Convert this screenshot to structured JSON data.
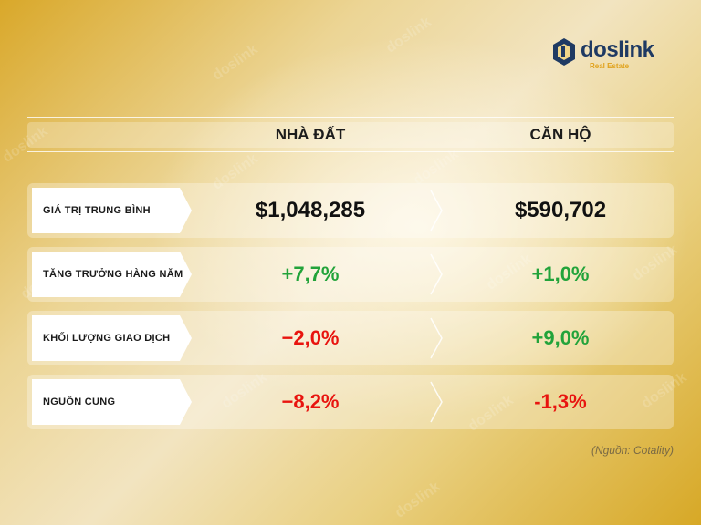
{
  "brand": {
    "name": "doslink",
    "tagline": "Real Estate",
    "watermark_text": "doslink",
    "colors": {
      "navy": "#1f3a63",
      "gold": "#e0a21c"
    }
  },
  "columns": {
    "land": "NHÀ ĐẤT",
    "apartment": "CĂN HỘ"
  },
  "rows": [
    {
      "label": "GIÁ TRỊ TRUNG BÌNH",
      "land": "$1,048,285",
      "apartment": "$590,702"
    },
    {
      "label": "TĂNG TRƯỞNG HÀNG NĂM",
      "land": "+7,7%",
      "apartment": "+1,0%"
    },
    {
      "label": "KHỐI LƯỢNG GIAO DỊCH",
      "land": "−2,0%",
      "apartment": "+9,0%"
    },
    {
      "label": "NGUỒN CUNG",
      "land": "−8,2%",
      "apartment": "-1,3%"
    }
  ],
  "colors": {
    "positive": "#22a33a",
    "negative": "#e8140f",
    "neutral": "#111111"
  },
  "source": "(Nguồn: Cotality)"
}
